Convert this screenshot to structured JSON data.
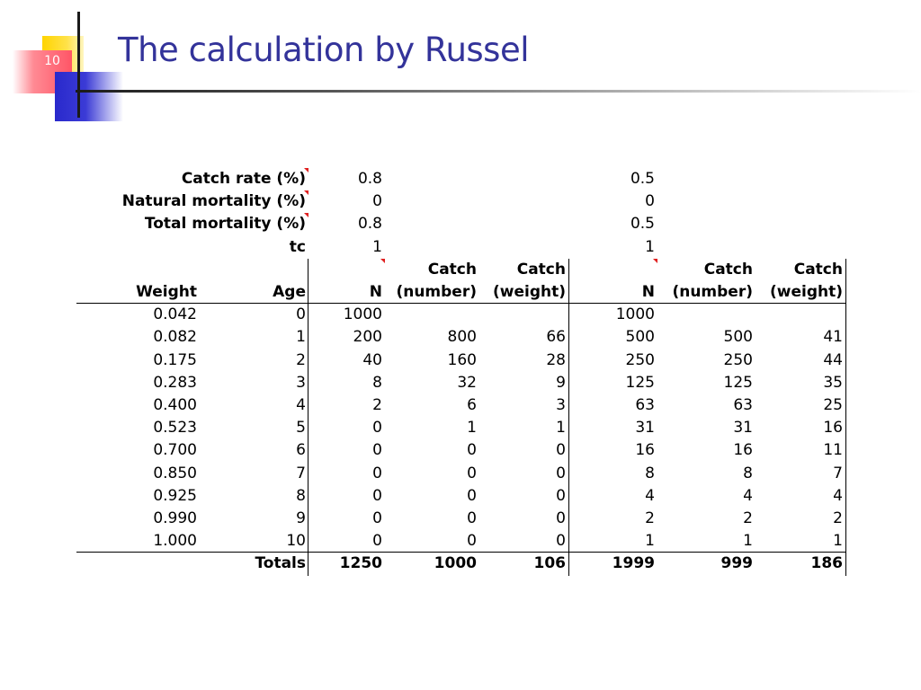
{
  "slide": {
    "number": "10",
    "title": "The calculation by Russel"
  },
  "params": [
    {
      "label": "Catch rate (%)",
      "a": "0.8",
      "b": "0.5",
      "marker": true
    },
    {
      "label": "Natural mortality (%)",
      "a": "0",
      "b": "0",
      "marker": true
    },
    {
      "label": "Total mortality (%)",
      "a": "0.8",
      "b": "0.5",
      "marker": true
    },
    {
      "label": "tc",
      "a": "1",
      "b": "1",
      "marker": false
    }
  ],
  "header": {
    "top": [
      "",
      "",
      "",
      "Catch",
      "Catch",
      "",
      "Catch",
      "Catch"
    ],
    "bottom": [
      "Weight",
      "Age",
      "N",
      "(number)",
      "(weight)",
      "N",
      "(number)",
      "(weight)"
    ]
  },
  "rows": [
    [
      "0.042",
      "0",
      "1000",
      "",
      "",
      "1000",
      "",
      ""
    ],
    [
      "0.082",
      "1",
      "200",
      "800",
      "66",
      "500",
      "500",
      "41"
    ],
    [
      "0.175",
      "2",
      "40",
      "160",
      "28",
      "250",
      "250",
      "44"
    ],
    [
      "0.283",
      "3",
      "8",
      "32",
      "9",
      "125",
      "125",
      "35"
    ],
    [
      "0.400",
      "4",
      "2",
      "6",
      "3",
      "63",
      "63",
      "25"
    ],
    [
      "0.523",
      "5",
      "0",
      "1",
      "1",
      "31",
      "31",
      "16"
    ],
    [
      "0.700",
      "6",
      "0",
      "0",
      "0",
      "16",
      "16",
      "11"
    ],
    [
      "0.850",
      "7",
      "0",
      "0",
      "0",
      "8",
      "8",
      "7"
    ],
    [
      "0.925",
      "8",
      "0",
      "0",
      "0",
      "4",
      "4",
      "4"
    ],
    [
      "0.990",
      "9",
      "0",
      "0",
      "0",
      "2",
      "2",
      "2"
    ],
    [
      "1.000",
      "10",
      "0",
      "0",
      "0",
      "1",
      "1",
      "1"
    ]
  ],
  "totals": [
    "",
    "Totals",
    "1250",
    "1000",
    "106",
    "1999",
    "999",
    "186"
  ]
}
